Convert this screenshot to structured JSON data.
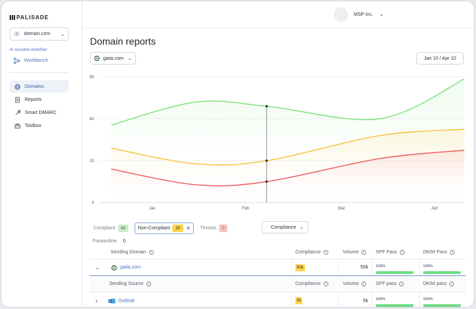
{
  "app": {
    "logo": "PALISADE"
  },
  "sidebar": {
    "domain_select": {
      "icon": "D",
      "value": "domain.com"
    },
    "ai_label": "AI assisted workflow",
    "workbench": "Workbench",
    "items": [
      {
        "label": "Domains",
        "icon": "globe-icon",
        "active": true
      },
      {
        "label": "Reports",
        "icon": "document-icon",
        "active": false
      },
      {
        "label": "Smart DMARC",
        "icon": "tools-icon",
        "active": false
      },
      {
        "label": "Toolbox",
        "icon": "toolbox-icon",
        "active": false
      }
    ]
  },
  "topbar": {
    "org_name": "MSP Inc."
  },
  "main": {
    "title": "Domain reports",
    "site_select": "gaiia.com",
    "date_range": "Jan 10 / Apr 10"
  },
  "chart_data": {
    "type": "line",
    "x": [
      "Jan",
      "Feb",
      "Mar",
      "Apr"
    ],
    "y_ticks": [
      "60",
      "40",
      "20",
      "0"
    ],
    "ylim": [
      0,
      60
    ],
    "xlim_days": [
      0,
      125
    ],
    "grid": "horizontal",
    "series": [
      {
        "points": [
          [
            0,
            37
          ],
          [
            30,
            48
          ],
          [
            55,
            46
          ],
          [
            95,
            40
          ],
          [
            125,
            59
          ]
        ],
        "color": "#7ee07e"
      },
      {
        "points": [
          [
            0,
            26
          ],
          [
            30,
            18.5
          ],
          [
            55,
            20
          ],
          [
            95,
            32
          ],
          [
            125,
            35
          ]
        ],
        "color": "#f5c33b"
      },
      {
        "points": [
          [
            0,
            16
          ],
          [
            30,
            8.5
          ],
          [
            55,
            10
          ],
          [
            95,
            21
          ],
          [
            125,
            25
          ]
        ],
        "color": "#ec5a5a"
      }
    ],
    "hover_x": 55
  },
  "filters": {
    "compliant": {
      "label": "Compliant",
      "count": "48"
    },
    "non_compliant": {
      "label": "Non-Compliant",
      "count": "20"
    },
    "threats": {
      "label": "Threats",
      "count": "0"
    },
    "compliance_button": "Compliance",
    "forwardine": {
      "label": "Forwardine",
      "count": "0"
    }
  },
  "table": {
    "headers": [
      "Sending Domain",
      "Compliance",
      "Volume",
      "SPF Pass",
      "DKIM Pass"
    ],
    "domain_row": {
      "name": "gaiia.com",
      "compliance": "50k",
      "volume": "50k",
      "spf": "100%",
      "dkim": "100%"
    },
    "sub_headers": [
      "Sending Source",
      "Compliance",
      "Volume",
      "SPF pass",
      "DKIM pass"
    ],
    "source_row": {
      "name": "Outlook",
      "compliance": "5k",
      "volume": "5k",
      "spf": "100%",
      "dkim": "100%"
    }
  }
}
